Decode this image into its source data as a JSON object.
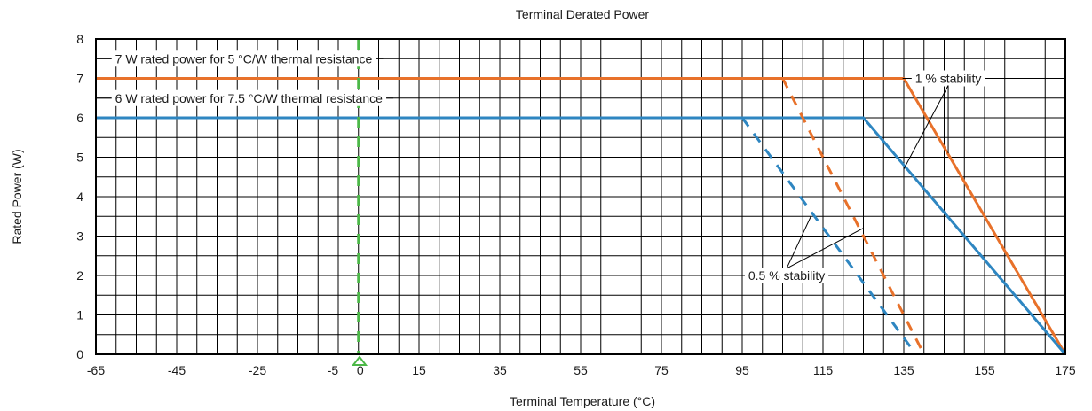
{
  "chart_data": {
    "type": "line",
    "title": "Terminal Derated Power",
    "xlabel": "Terminal Temperature (°C)",
    "ylabel": "Rated Power (W)",
    "xlim": [
      -65,
      175
    ],
    "ylim": [
      0,
      8
    ],
    "x_ticks": [
      -65,
      -45,
      -25,
      -5,
      0,
      15,
      35,
      55,
      75,
      95,
      115,
      135,
      155,
      175
    ],
    "y_ticks": [
      0,
      1,
      2,
      3,
      4,
      5,
      6,
      7,
      8
    ],
    "grid": true,
    "series": [
      {
        "key": "orange_1pct",
        "color": "#E8712A",
        "dash": false,
        "points": [
          [
            -65,
            7
          ],
          [
            135,
            7
          ],
          [
            175,
            0
          ]
        ]
      },
      {
        "key": "blue_1pct",
        "color": "#2E86C1",
        "dash": false,
        "points": [
          [
            -65,
            6
          ],
          [
            125,
            6
          ],
          [
            175,
            0
          ]
        ]
      },
      {
        "key": "orange_05pct",
        "color": "#E8712A",
        "dash": true,
        "points": [
          [
            105,
            7
          ],
          [
            140,
            0
          ]
        ]
      },
      {
        "key": "blue_05pct",
        "color": "#2E86C1",
        "dash": true,
        "points": [
          [
            95,
            6
          ],
          [
            138,
            0
          ]
        ]
      },
      {
        "key": "zero_marker",
        "color": "#4CB848",
        "dash": true,
        "points": [
          [
            0,
            8
          ],
          [
            0,
            0
          ]
        ]
      }
    ],
    "annotations": [
      {
        "text": "7 W rated power for 5 °C/W thermal resistance",
        "x": -62,
        "y": 7.5
      },
      {
        "text": "6 W rated power for 7.5 °C/W thermal resistance",
        "x": -62,
        "y": 6.5
      },
      {
        "text": "1 % stability",
        "x": 146,
        "y": 7.0,
        "targets": [
          [
            135,
            4.7
          ],
          [
            146,
            5.1
          ]
        ]
      },
      {
        "text": "0.5 % stability",
        "x": 106,
        "y": 2.0,
        "targets": [
          [
            112,
            3.5
          ],
          [
            125,
            3.2
          ]
        ]
      }
    ]
  }
}
